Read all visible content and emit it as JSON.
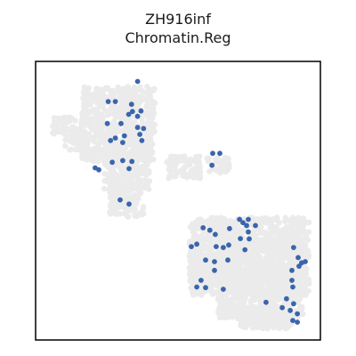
{
  "chart_data": {
    "type": "scatter",
    "title": "ZH916inf",
    "subtitle": "Chromatin.Reg",
    "xlabel": "",
    "ylabel": "",
    "grid": false,
    "xlim": [
      0,
      100
    ],
    "ylim": [
      0,
      100
    ],
    "colors": {
      "background_points": "#ebebeb",
      "highlight_points": "#3a65ad",
      "frame": "#000000"
    },
    "background_regions": [
      {
        "x": [
          16,
          42
        ],
        "y": [
          64,
          91
        ]
      },
      {
        "x": [
          24,
          40
        ],
        "y": [
          54,
          72
        ]
      },
      {
        "x": [
          26,
          38
        ],
        "y": [
          44,
          58
        ]
      },
      {
        "x": [
          6,
          14
        ],
        "y": [
          74,
          80
        ]
      },
      {
        "x": [
          10,
          16
        ],
        "y": [
          68,
          76
        ]
      },
      {
        "x": [
          46,
          58
        ],
        "y": [
          58,
          66
        ]
      },
      {
        "x": [
          60,
          68
        ],
        "y": [
          60,
          66
        ]
      },
      {
        "x": [
          54,
          96
        ],
        "y": [
          16,
          44
        ]
      },
      {
        "x": [
          64,
          94
        ],
        "y": [
          8,
          36
        ]
      },
      {
        "x": [
          70,
          90
        ],
        "y": [
          4,
          12
        ]
      },
      {
        "x": [
          54,
          64
        ],
        "y": [
          20,
          30
        ]
      }
    ],
    "points": [
      {
        "x": 35.8,
        "y": 92.8
      },
      {
        "x": 25.5,
        "y": 85.6
      },
      {
        "x": 28.0,
        "y": 85.6
      },
      {
        "x": 33.7,
        "y": 84.6
      },
      {
        "x": 34.0,
        "y": 82.0
      },
      {
        "x": 35.8,
        "y": 80.3
      },
      {
        "x": 32.7,
        "y": 81.0
      },
      {
        "x": 37.0,
        "y": 82.2
      },
      {
        "x": 25.2,
        "y": 77.7
      },
      {
        "x": 30.0,
        "y": 77.7
      },
      {
        "x": 35.8,
        "y": 76.3
      },
      {
        "x": 37.9,
        "y": 75.9
      },
      {
        "x": 31.2,
        "y": 73.3
      },
      {
        "x": 36.6,
        "y": 73.8
      },
      {
        "x": 28.0,
        "y": 72.5
      },
      {
        "x": 26.3,
        "y": 71.6
      },
      {
        "x": 37.3,
        "y": 71.6
      },
      {
        "x": 30.6,
        "y": 70.9
      },
      {
        "x": 26.9,
        "y": 63.8
      },
      {
        "x": 30.6,
        "y": 64.4
      },
      {
        "x": 33.8,
        "y": 64.1
      },
      {
        "x": 20.9,
        "y": 61.8
      },
      {
        "x": 22.2,
        "y": 61.1
      },
      {
        "x": 32.8,
        "y": 61.5
      },
      {
        "x": 29.7,
        "y": 50.3
      },
      {
        "x": 32.8,
        "y": 48.8
      },
      {
        "x": 62.2,
        "y": 67.0
      },
      {
        "x": 64.7,
        "y": 67.0
      },
      {
        "x": 61.9,
        "y": 62.7
      },
      {
        "x": 71.6,
        "y": 43.3
      },
      {
        "x": 72.8,
        "y": 42.1
      },
      {
        "x": 74.7,
        "y": 43.3
      },
      {
        "x": 74.1,
        "y": 41.1
      },
      {
        "x": 74.7,
        "y": 38.8
      },
      {
        "x": 75.0,
        "y": 36.3
      },
      {
        "x": 77.2,
        "y": 41.1
      },
      {
        "x": 58.8,
        "y": 40.3
      },
      {
        "x": 61.2,
        "y": 39.4
      },
      {
        "x": 63.1,
        "y": 37.9
      },
      {
        "x": 68.1,
        "y": 40.0
      },
      {
        "x": 71.9,
        "y": 36.4
      },
      {
        "x": 67.8,
        "y": 34.1
      },
      {
        "x": 56.6,
        "y": 34.4
      },
      {
        "x": 54.7,
        "y": 33.5
      },
      {
        "x": 63.4,
        "y": 33.5
      },
      {
        "x": 65.9,
        "y": 33.2
      },
      {
        "x": 59.7,
        "y": 28.7
      },
      {
        "x": 62.8,
        "y": 28.1
      },
      {
        "x": 67.5,
        "y": 28.7
      },
      {
        "x": 73.5,
        "y": 32.4
      },
      {
        "x": 62.8,
        "y": 25.0
      },
      {
        "x": 58.1,
        "y": 21.4
      },
      {
        "x": 56.6,
        "y": 19.0
      },
      {
        "x": 59.7,
        "y": 18.8
      },
      {
        "x": 65.9,
        "y": 18.2
      },
      {
        "x": 90.6,
        "y": 33.2
      },
      {
        "x": 92.2,
        "y": 29.6
      },
      {
        "x": 93.4,
        "y": 27.7
      },
      {
        "x": 94.7,
        "y": 28.1
      },
      {
        "x": 92.5,
        "y": 26.5
      },
      {
        "x": 90.0,
        "y": 25.0
      },
      {
        "x": 90.0,
        "y": 21.4
      },
      {
        "x": 90.3,
        "y": 19.0
      },
      {
        "x": 80.9,
        "y": 13.5
      },
      {
        "x": 88.1,
        "y": 14.8
      },
      {
        "x": 90.6,
        "y": 13.0
      },
      {
        "x": 89.4,
        "y": 10.6
      },
      {
        "x": 91.9,
        "y": 9.4
      },
      {
        "x": 90.3,
        "y": 7.0
      },
      {
        "x": 91.9,
        "y": 6.4
      },
      {
        "x": 86.6,
        "y": 11.6
      }
    ]
  }
}
